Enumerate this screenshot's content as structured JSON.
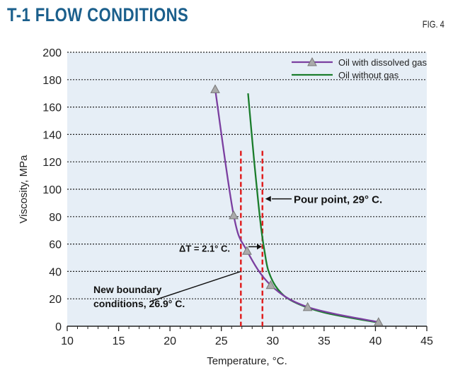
{
  "header": {
    "title": "T-1 FLOW CONDITIONS",
    "fig_label": "FIG. 4"
  },
  "chart_data": {
    "type": "line",
    "xlabel": "Temperature, °C.",
    "ylabel": "Viscosity, MPa",
    "xlim": [
      10,
      45
    ],
    "ylim": [
      0,
      200
    ],
    "xticks": [
      "10",
      "15",
      "20",
      "25",
      "30",
      "35",
      "40",
      "45"
    ],
    "yticks": [
      "0",
      "20",
      "40",
      "60",
      "80",
      "100",
      "120",
      "140",
      "160",
      "180",
      "200"
    ],
    "grid": "horizontal dotted",
    "legend_position": "top-right",
    "background": "#e6eef6",
    "series": [
      {
        "name": "Oil with dissolved gas",
        "color": "#7b3fa0",
        "marker": "triangle",
        "x": [
          24.4,
          26.2,
          27.5,
          29.8,
          33.4,
          40.3
        ],
        "y": [
          173,
          81,
          55,
          30,
          14,
          3
        ]
      },
      {
        "name": "Oil without gas",
        "color": "#1b7d2c",
        "marker": "none",
        "x": [
          27.6,
          28.2,
          28.6,
          28.9,
          29.2,
          29.6,
          30.5,
          32,
          35,
          40
        ],
        "y": [
          170,
          120,
          90,
          70,
          55,
          40,
          27,
          18,
          10,
          3
        ]
      }
    ],
    "reference_lines": [
      {
        "x": 26.9,
        "ymax": 128,
        "color": "#e02020"
      },
      {
        "x": 29,
        "ymax": 128,
        "color": "#e02020"
      }
    ],
    "annotations": [
      {
        "text": "Pour point, 29° C.",
        "x": 29,
        "y": 93
      },
      {
        "text": "ΔT = 2.1° C.",
        "x": 27,
        "y": 57
      },
      {
        "text": "New boundary conditions, 26.9° C.",
        "lines": [
          "New boundary",
          "conditions, 26.9° C."
        ],
        "x": 26.9,
        "y": 45
      }
    ]
  }
}
